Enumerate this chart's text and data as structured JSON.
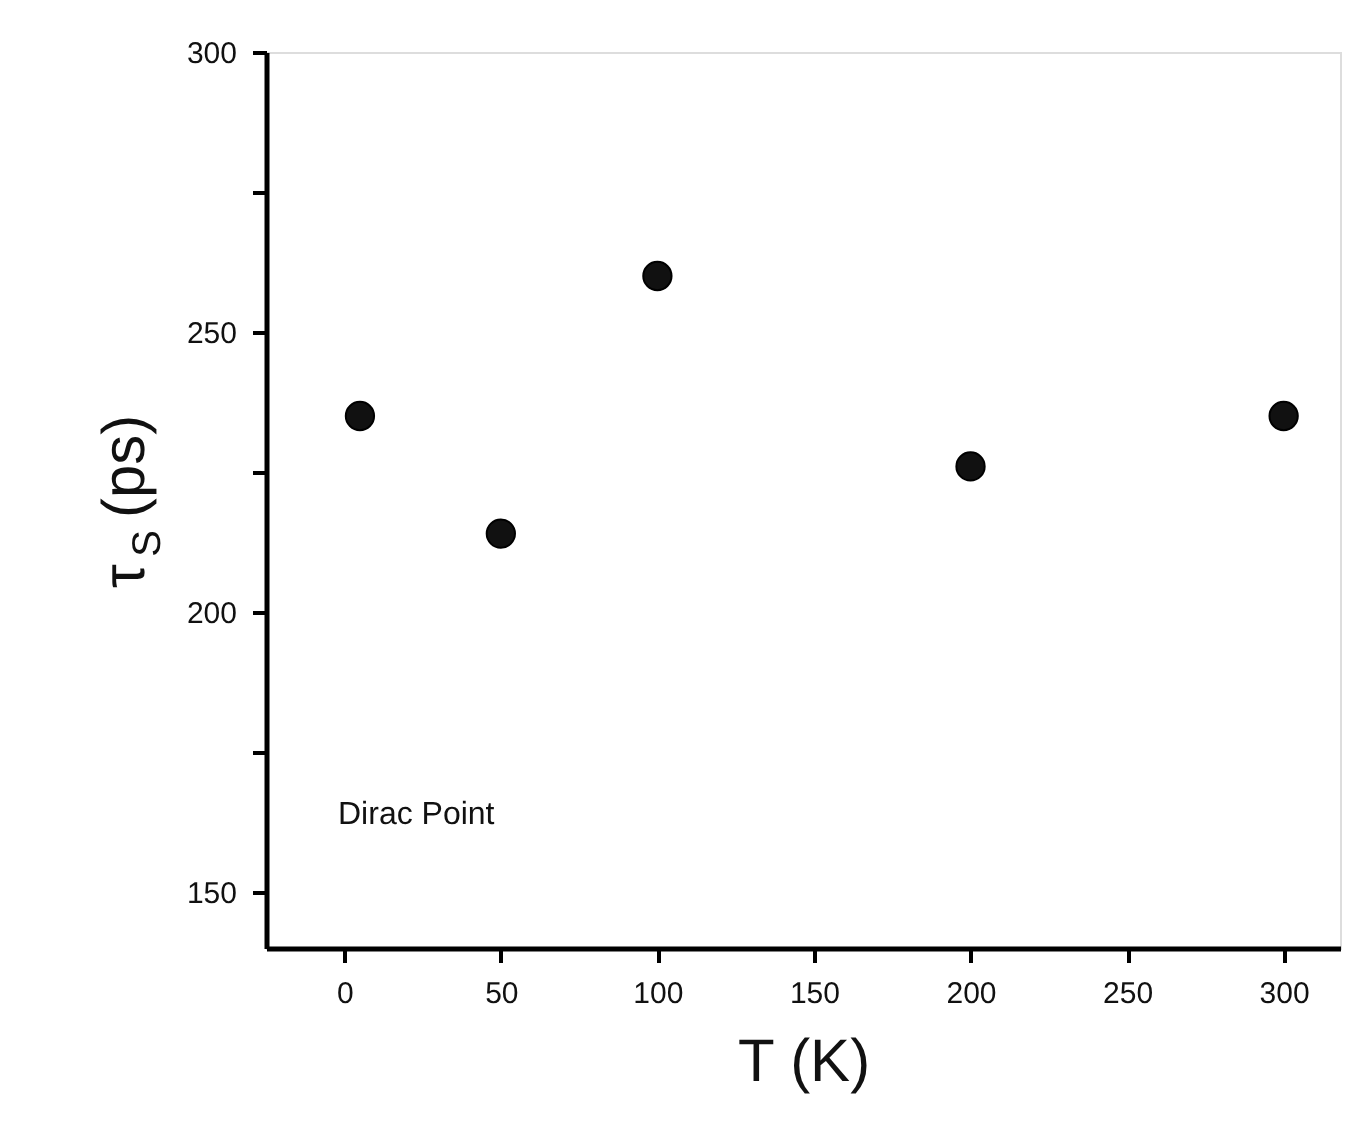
{
  "chart_data": {
    "type": "scatter",
    "xlabel": "T (K)",
    "ylabel": "τ$_{S}$ (ps)",
    "x": [
      5,
      50,
      100,
      200,
      300
    ],
    "series": [
      {
        "color": "#111111",
        "values": [
          235,
          214,
          260,
          226,
          235
        ]
      }
    ],
    "xlim": [
      -25,
      318
    ],
    "xticks": [
      0,
      50,
      100,
      150,
      200,
      250,
      300
    ],
    "ylim": [
      140,
      300
    ],
    "yticks": [
      150,
      {
        "value": 175,
        "label": null
      },
      200,
      {
        "value": 225,
        "label": null
      },
      250,
      {
        "value": 275,
        "label": null
      },
      300
    ],
    "marker": "circle",
    "grid": false,
    "legend": false,
    "annotations": [
      "Dirac Point"
    ]
  }
}
